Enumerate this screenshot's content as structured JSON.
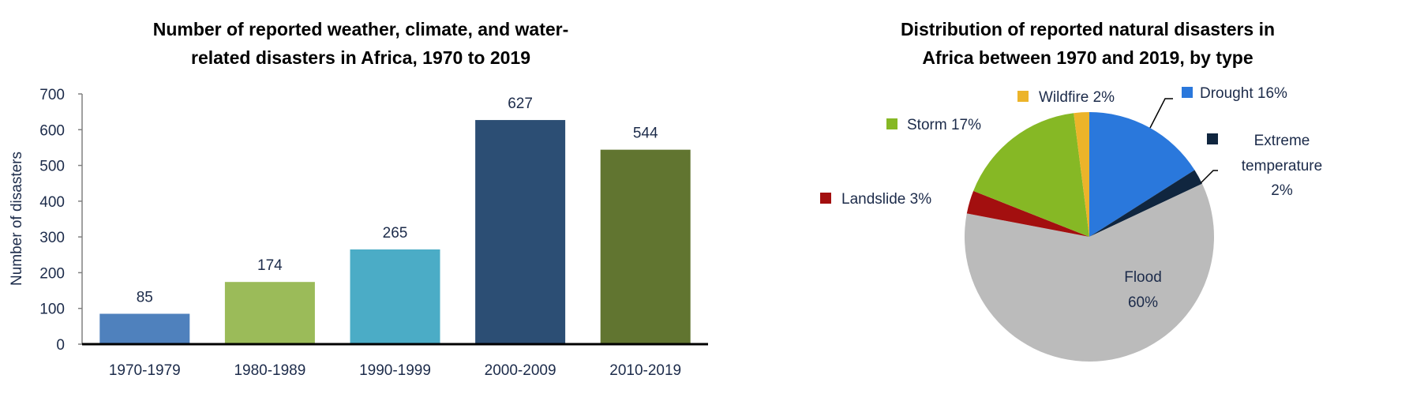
{
  "chart_data": [
    {
      "type": "bar",
      "title": [
        "Number of reported weather, climate, and water-",
        "related disasters in Africa, 1970 to 2019"
      ],
      "xlabel": "",
      "ylabel": "Number of disasters",
      "categories": [
        "1970-1979",
        "1980-1989",
        "1990-1999",
        "2000-2009",
        "2010-2019"
      ],
      "values": [
        85,
        174,
        265,
        627,
        544
      ],
      "data_labels": [
        "85",
        "174",
        "265",
        "627",
        "544"
      ],
      "colors": [
        "#4f81bd",
        "#9bbb59",
        "#4bacc6",
        "#2c4e74",
        "#617530"
      ],
      "ylim": [
        0,
        700
      ],
      "yticks": [
        "0",
        "100",
        "200",
        "300",
        "400",
        "500",
        "600",
        "700"
      ],
      "grid": false
    },
    {
      "type": "pie",
      "title": [
        "Distribution of reported natural disasters in",
        "Africa between 1970 and 2019, by type"
      ],
      "slices": [
        {
          "name": "Drought",
          "value": 16,
          "label": "Drought 16%",
          "color": "#2a78dc"
        },
        {
          "name": "Extreme temperature",
          "value": 2,
          "label": [
            "Extreme",
            "temperature",
            "2%"
          ],
          "color": "#10263f"
        },
        {
          "name": "Flood",
          "value": 60,
          "label": [
            "Flood",
            "60%"
          ],
          "color": "#bbbbbb"
        },
        {
          "name": "Landslide",
          "value": 3,
          "label": "Landslide 3%",
          "color": "#a30f0f"
        },
        {
          "name": "Storm",
          "value": 17,
          "label": "Storm 17%",
          "color": "#86b825"
        },
        {
          "name": "Wildfire",
          "value": 2,
          "label": "Wildfire 2%",
          "color": "#ecb42a"
        }
      ],
      "start": "12 o'clock, clockwise"
    }
  ]
}
